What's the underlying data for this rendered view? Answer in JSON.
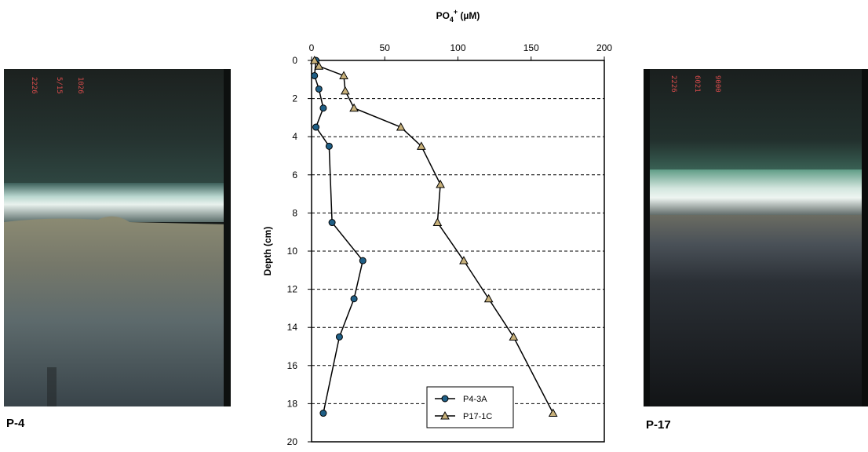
{
  "photos": {
    "left_label": "P-4",
    "right_label": "P-17",
    "left_marking": "2226\n5/15\n1026",
    "right_marking": "2226\n6021\n9000"
  },
  "chart_data": {
    "type": "line",
    "title": "",
    "xlabel_main": "PO",
    "xlabel_sub": "4",
    "xlabel_sup": "+",
    "xlabel_unit": " (µM)",
    "ylabel": "Depth (cm)",
    "xlim": [
      0,
      200
    ],
    "ylim": [
      0,
      20
    ],
    "y_inverted": true,
    "x_axis_position": "top",
    "x_ticks": [
      0,
      50,
      100,
      150,
      200
    ],
    "y_ticks": [
      0,
      2,
      4,
      6,
      8,
      10,
      12,
      14,
      16,
      18,
      20
    ],
    "grid": "horizontal dashed at even depths",
    "legend_position": "bottom-center",
    "series": [
      {
        "name": "P4-3A",
        "marker": "circle",
        "color": "#1f5f86",
        "points": [
          {
            "x": 3,
            "y": 0
          },
          {
            "x": 2,
            "y": 0.8
          },
          {
            "x": 5,
            "y": 1.5
          },
          {
            "x": 8,
            "y": 2.5
          },
          {
            "x": 3,
            "y": 3.5
          },
          {
            "x": 12,
            "y": 4.5
          },
          {
            "x": 14,
            "y": 8.5
          },
          {
            "x": 35,
            "y": 10.5
          },
          {
            "x": 29,
            "y": 12.5
          },
          {
            "x": 19,
            "y": 14.5
          },
          {
            "x": 8,
            "y": 18.5
          }
        ]
      },
      {
        "name": "P17-1C",
        "marker": "triangle",
        "color": "#c7b07a",
        "points": [
          {
            "x": 2,
            "y": 0
          },
          {
            "x": 5,
            "y": 0.3
          },
          {
            "x": 22,
            "y": 0.8
          },
          {
            "x": 23,
            "y": 1.6
          },
          {
            "x": 29,
            "y": 2.5
          },
          {
            "x": 61,
            "y": 3.5
          },
          {
            "x": 75,
            "y": 4.5
          },
          {
            "x": 88,
            "y": 6.5
          },
          {
            "x": 86,
            "y": 8.5
          },
          {
            "x": 104,
            "y": 10.5
          },
          {
            "x": 121,
            "y": 12.5
          },
          {
            "x": 138,
            "y": 14.5
          },
          {
            "x": 165,
            "y": 18.5
          }
        ]
      }
    ]
  }
}
